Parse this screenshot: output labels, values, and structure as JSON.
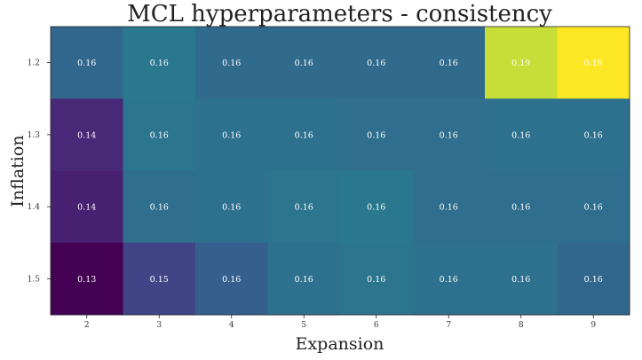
{
  "chart_data": {
    "type": "heatmap",
    "title": "MCL hyperparameters - consistency",
    "xlabel": "Expansion",
    "ylabel": "Inflation",
    "x": [
      "2",
      "3",
      "4",
      "5",
      "6",
      "7",
      "8",
      "9"
    ],
    "y": [
      "1.2",
      "1.3",
      "1.4",
      "1.5"
    ],
    "values": [
      [
        0.158,
        0.163,
        0.159,
        0.159,
        0.159,
        0.159,
        0.19,
        0.193
      ],
      [
        0.142,
        0.162,
        0.161,
        0.161,
        0.16,
        0.16,
        0.161,
        0.161
      ],
      [
        0.14,
        0.16,
        0.161,
        0.162,
        0.163,
        0.16,
        0.16,
        0.16
      ],
      [
        0.133,
        0.148,
        0.156,
        0.161,
        0.162,
        0.161,
        0.161,
        0.158
      ]
    ],
    "labels": [
      [
        "0.16",
        "0.16",
        "0.16",
        "0.16",
        "0.16",
        "0.16",
        "0.19",
        "0.19"
      ],
      [
        "0.14",
        "0.16",
        "0.16",
        "0.16",
        "0.16",
        "0.16",
        "0.16",
        "0.16"
      ],
      [
        "0.14",
        "0.16",
        "0.16",
        "0.16",
        "0.16",
        "0.16",
        "0.16",
        "0.16"
      ],
      [
        "0.13",
        "0.15",
        "0.16",
        "0.16",
        "0.16",
        "0.16",
        "0.16",
        "0.16"
      ]
    ],
    "colormap": "viridis",
    "vmin": 0.133,
    "vmax": 0.193,
    "annotation_color": "#ffffff",
    "grid": false,
    "legend": "none"
  }
}
